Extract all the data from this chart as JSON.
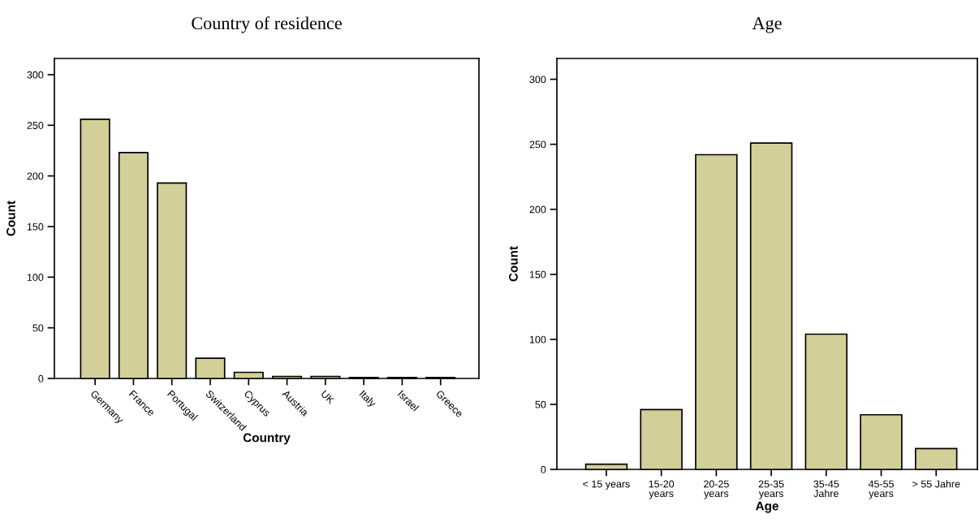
{
  "chart_data": [
    {
      "type": "bar",
      "title": "Country of residence",
      "xlabel": "Country",
      "ylabel": "Count",
      "categories": [
        "Germany",
        "France",
        "Portugal",
        "Switzerland",
        "Cyprus",
        "Austria",
        "UK",
        "Italy",
        "Israel",
        "Greece"
      ],
      "values": [
        256,
        223,
        193,
        20,
        6,
        2,
        2,
        1,
        1,
        1
      ],
      "color": "#d3cf98",
      "ylim": [
        0,
        316
      ],
      "yticks": [
        0,
        50,
        100,
        150,
        200,
        250,
        300
      ],
      "grid": false
    },
    {
      "type": "bar",
      "title": "Age",
      "xlabel": "Age",
      "ylabel": "Count",
      "categories": [
        "< 15 years",
        "15-20\nyears",
        "20-25\nyears",
        "25-35\nyears",
        "35-45\nJahre",
        "45-55\nyears",
        "> 55 Jahre"
      ],
      "values": [
        4,
        46,
        242,
        251,
        104,
        42,
        16
      ],
      "color": "#d3cf98",
      "ylim": [
        0,
        316
      ],
      "yticks": [
        0,
        50,
        100,
        150,
        200,
        250,
        300
      ],
      "grid": false
    }
  ]
}
